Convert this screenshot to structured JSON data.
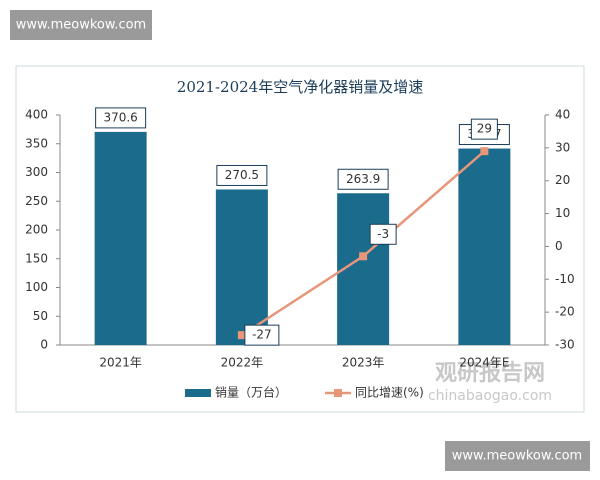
{
  "watermarks": [
    "www.meowkow.com",
    "www.meowkow.com",
    "观研报告网",
    "chinabaogao.com"
  ],
  "chart_data": {
    "type": "combo",
    "title": "2021-2024年空气净化器销量及增速",
    "categories": [
      "2021年",
      "2022年",
      "2023年",
      "2024年E"
    ],
    "series": [
      {
        "name": "销量（万台）",
        "type": "bar",
        "color": "#1b6b8c",
        "values": [
          370.6,
          270.5,
          263.9,
          341.7
        ]
      },
      {
        "name": "同比增速(%)",
        "type": "line",
        "axis": "y2",
        "color": "#e8967a",
        "values": [
          null,
          -27,
          -3,
          29
        ]
      }
    ],
    "ylim": [
      0,
      400
    ],
    "yticks": [
      0,
      50,
      100,
      150,
      200,
      250,
      300,
      350,
      400
    ],
    "y2lim": [
      -30,
      40
    ],
    "y2ticks": [
      -30,
      -20,
      -10,
      0,
      10,
      20,
      30,
      40
    ],
    "legend": "bottom"
  }
}
